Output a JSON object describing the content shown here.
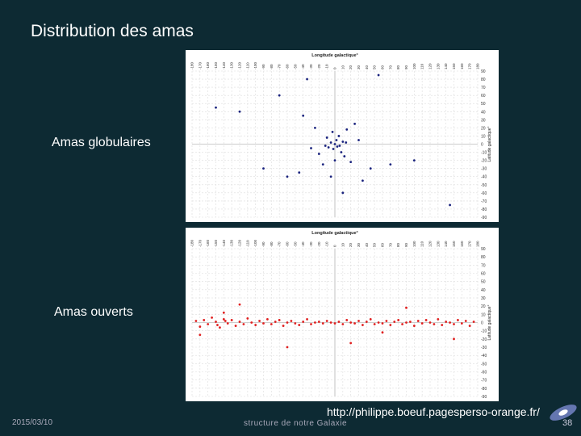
{
  "slide": {
    "title": "Distribution des amas",
    "label_globular": "Amas globulaires",
    "label_open": "Amas ouverts",
    "url": "http://philippe.boeuf.pagesperso-orange.fr/",
    "date": "2015/03/10",
    "footer": "structure de notre Galaxie",
    "page": "38"
  },
  "chart_data": [
    {
      "type": "scatter",
      "xlabel": "Longitude galactique°",
      "ylabel": "Latitude galactique°",
      "color": "#1a237e",
      "grid": true,
      "xlim": [
        -180,
        180
      ],
      "ylim": [
        -90,
        90
      ],
      "xticks": [
        -180,
        -170,
        -160,
        -150,
        -140,
        -130,
        -120,
        -110,
        -100,
        -90,
        -80,
        -70,
        -60,
        -50,
        -40,
        -30,
        -20,
        -10,
        0,
        10,
        20,
        30,
        40,
        50,
        60,
        70,
        80,
        90,
        100,
        110,
        120,
        130,
        140,
        150,
        160,
        170,
        180
      ],
      "yticks": [
        90,
        80,
        70,
        60,
        50,
        40,
        30,
        20,
        10,
        0,
        -10,
        -20,
        -30,
        -40,
        -50,
        -60,
        -70,
        -80,
        -90
      ],
      "x": [
        0,
        3,
        -5,
        2,
        -2,
        6,
        -8,
        10,
        5,
        -10,
        8,
        -3,
        12,
        15,
        -20,
        -25,
        20,
        30,
        -30,
        -40,
        45,
        -60,
        70,
        -90,
        -120,
        -150,
        100,
        -5,
        10,
        35,
        -70,
        -35,
        55,
        145,
        -15,
        -45,
        25,
        0,
        -12,
        14
      ],
      "y": [
        0,
        -3,
        2,
        5,
        -6,
        -2,
        -4,
        3,
        10,
        8,
        -10,
        15,
        -15,
        18,
        -12,
        20,
        -22,
        5,
        -5,
        35,
        -30,
        -40,
        -25,
        -30,
        40,
        45,
        -20,
        -40,
        -60,
        -45,
        60,
        80,
        85,
        -75,
        -25,
        -35,
        25,
        -20,
        -2,
        2
      ]
    },
    {
      "type": "scatter",
      "xlabel": "Longitude galactique°",
      "ylabel": "Latitude galactique°",
      "color": "#e02020",
      "grid": true,
      "xlim": [
        -180,
        180
      ],
      "ylim": [
        -90,
        90
      ],
      "xticks": [
        -180,
        -170,
        -160,
        -150,
        -140,
        -130,
        -120,
        -110,
        -100,
        -90,
        -80,
        -70,
        -60,
        -50,
        -40,
        -30,
        -20,
        -10,
        0,
        10,
        20,
        30,
        40,
        50,
        60,
        70,
        80,
        90,
        100,
        110,
        120,
        130,
        140,
        150,
        160,
        170,
        180
      ],
      "yticks": [
        90,
        80,
        70,
        60,
        50,
        40,
        30,
        20,
        10,
        0,
        -10,
        -20,
        -30,
        -40,
        -50,
        -60,
        -70,
        -80,
        -90
      ],
      "x": [
        -175,
        -170,
        -165,
        -160,
        -155,
        -150,
        -148,
        -145,
        -140,
        -138,
        -135,
        -130,
        -125,
        -120,
        -115,
        -110,
        -105,
        -100,
        -95,
        -90,
        -85,
        -80,
        -75,
        -70,
        -65,
        -60,
        -55,
        -50,
        -45,
        -40,
        -35,
        -30,
        -25,
        -20,
        -15,
        -10,
        -5,
        0,
        5,
        10,
        15,
        20,
        25,
        30,
        35,
        40,
        45,
        50,
        55,
        60,
        65,
        70,
        75,
        80,
        85,
        90,
        95,
        100,
        105,
        110,
        115,
        120,
        125,
        130,
        135,
        140,
        145,
        150,
        155,
        160,
        165,
        170,
        175,
        -170,
        -120,
        -60,
        20,
        90,
        150,
        -140,
        60
      ],
      "y": [
        2,
        -5,
        3,
        -2,
        6,
        1,
        -3,
        -6,
        4,
        2,
        -1,
        3,
        -4,
        1,
        -2,
        5,
        0,
        -3,
        2,
        -1,
        4,
        -2,
        1,
        3,
        -4,
        0,
        2,
        -1,
        -3,
        1,
        4,
        -2,
        0,
        1,
        -1,
        2,
        0,
        -1,
        1,
        -2,
        3,
        0,
        -1,
        2,
        -3,
        1,
        4,
        -2,
        0,
        -1,
        2,
        -3,
        1,
        3,
        -2,
        0,
        1,
        -4,
        2,
        -1,
        3,
        0,
        -2,
        4,
        -3,
        1,
        0,
        -2,
        3,
        -1,
        2,
        -4,
        1,
        -15,
        22,
        -30,
        -25,
        18,
        -20,
        12,
        -12
      ]
    }
  ]
}
